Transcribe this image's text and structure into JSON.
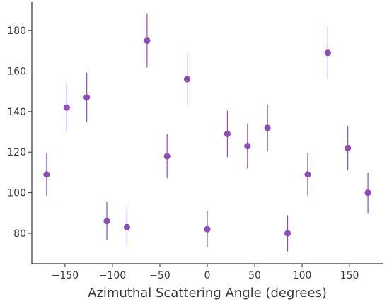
{
  "chart_data": {
    "type": "scatter",
    "title": "",
    "xlabel": "Azimuthal Scattering Angle (degrees)",
    "ylabel": "",
    "xlim": [
      -185,
      185
    ],
    "ylim": [
      65,
      194
    ],
    "xticks": [
      -150,
      -100,
      -50,
      0,
      50,
      100,
      150
    ],
    "yticks": [
      80,
      100,
      120,
      140,
      160,
      180
    ],
    "xtick_labels": [
      "−150",
      "−100",
      "−50",
      "0",
      "50",
      "100",
      "150"
    ],
    "ytick_labels": [
      "80",
      "100",
      "120",
      "140",
      "160",
      "180"
    ],
    "grid": false,
    "color": "#8e4fb5",
    "series": [
      {
        "x": [
          -169.4,
          -148.2,
          -127.1,
          -105.9,
          -84.7,
          -63.5,
          -42.4,
          -21.2,
          0,
          21.2,
          42.4,
          63.5,
          84.7,
          105.9,
          127.1,
          148.2,
          169.4
        ],
        "y": [
          109,
          142,
          147,
          86,
          83,
          175,
          118,
          156,
          82,
          129,
          123,
          132,
          80,
          109,
          169,
          122,
          100
        ],
        "yerr": [
          10.5,
          12,
          12.2,
          9.3,
          9.1,
          13.2,
          10.9,
          12.5,
          9,
          11.4,
          11.1,
          11.5,
          8.9,
          10.4,
          13,
          11,
          10
        ]
      }
    ]
  }
}
